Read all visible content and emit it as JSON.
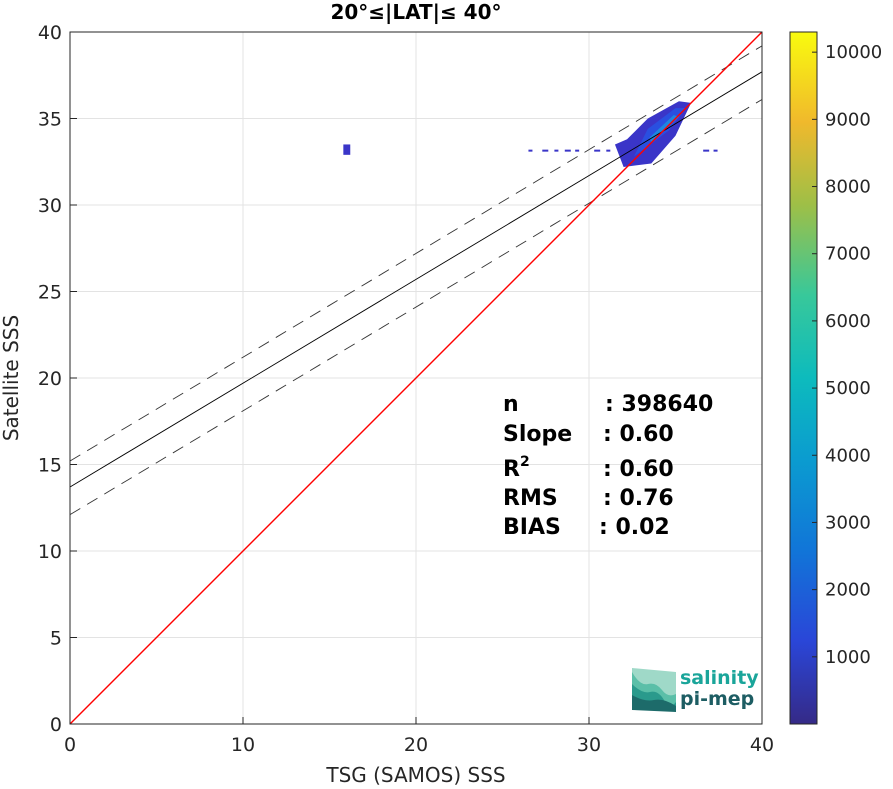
{
  "chart_data": {
    "type": "heatmap",
    "title": "20°≤|LAT|≤ 40°",
    "xlabel": "TSG (SAMOS) SSS",
    "ylabel": "Satellite SSS",
    "xlim": [
      0,
      40
    ],
    "ylim": [
      0,
      40
    ],
    "xticks": [
      "0",
      "10",
      "20",
      "30",
      "40"
    ],
    "yticks": [
      "0",
      "5",
      "10",
      "15",
      "20",
      "25",
      "30",
      "35",
      "40"
    ],
    "grid": true,
    "colorbar": {
      "range": [
        0,
        10300
      ],
      "ticks": [
        "1000",
        "2000",
        "3000",
        "4000",
        "5000",
        "6000",
        "7000",
        "8000",
        "9000",
        "10000"
      ],
      "colormap": "parula"
    },
    "lines": {
      "identity": {
        "slope": 1,
        "intercept": 0,
        "color": "#ff0000"
      },
      "regression": {
        "slope": 0.6,
        "intercept": 13.7,
        "color": "#000000"
      },
      "upper_bound": {
        "slope": 0.6,
        "intercept": 15.2,
        "style": "dashed"
      },
      "lower_bound": {
        "slope": 0.6,
        "intercept": 12.1,
        "style": "dashed"
      }
    },
    "density_regions": [
      {
        "x": [
          32,
          36
        ],
        "y": [
          32,
          36
        ],
        "level": "high"
      },
      {
        "x": [
          15.8,
          16.2
        ],
        "y": [
          32.9,
          33.5
        ],
        "level": "low"
      },
      {
        "x": [
          26.5,
          37.5
        ],
        "y": [
          32.9,
          33.4
        ],
        "level": "low"
      }
    ],
    "stats": [
      {
        "label": "n",
        "value": ": 398640"
      },
      {
        "label": "Slope",
        "value": ": 0.60"
      },
      {
        "label": "R",
        "sup": "2",
        "value": ": 0.60"
      },
      {
        "label": "RMS",
        "value": ": 0.76"
      },
      {
        "label": "BIAS",
        "value": ": 0.02"
      }
    ]
  },
  "logo": {
    "line1": "salinity",
    "line2": "pi-mep"
  },
  "colors": {
    "identity_line": "#ff0000",
    "regression_line": "#000000",
    "logo_teal": "#1aa59a",
    "logo_dark": "#1d5d63"
  }
}
